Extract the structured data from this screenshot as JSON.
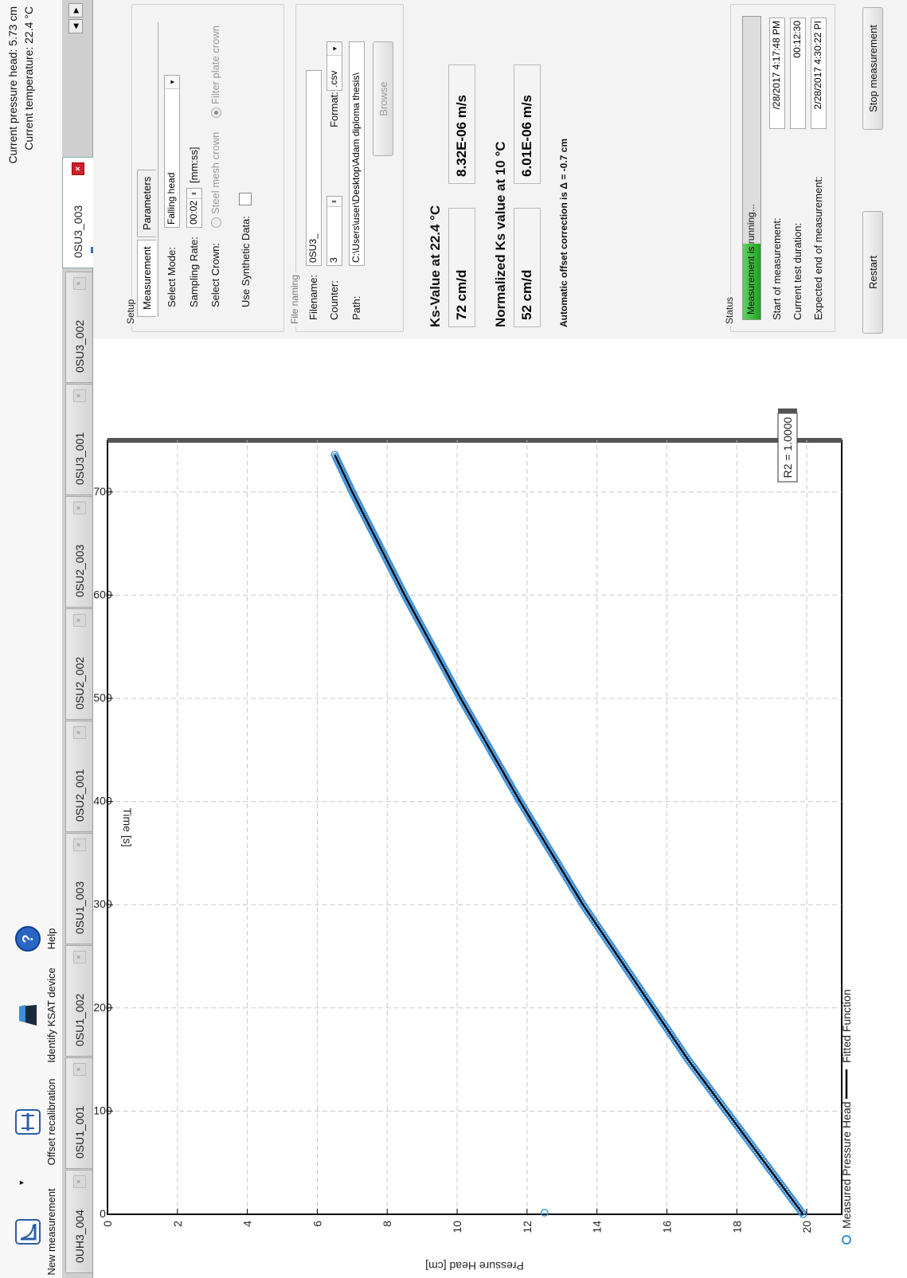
{
  "toolbar": {
    "new_measurement": "New measurement",
    "offset_recalibration": "Offset recalibration",
    "identify_device": "Identify KSAT device",
    "help": "Help",
    "icons": [
      "new-measurement-icon",
      "offset-recalibration-icon",
      "ksat-device-icon",
      "help-icon"
    ]
  },
  "status": {
    "pressure_head": "Current pressure head: 5.73 cm",
    "temperature": "Current temperature:  22.4 °C"
  },
  "tabs": [
    "0UH3_004",
    "0SU1_001",
    "0SU1_002",
    "0SU1_003",
    "0SU2_001",
    "0SU2_002",
    "0SU2_003",
    "0SU3_001",
    "0SU3_002",
    "0SU3_003"
  ],
  "active_tab": "0SU3_003",
  "chart_data": {
    "type": "scatter",
    "xlabel": "Time [s]",
    "ylabel": "Pressure Head [cm]",
    "xlim": [
      0,
      750
    ],
    "ylim": [
      0,
      21
    ],
    "xticks": [
      0,
      100,
      200,
      300,
      400,
      500,
      600,
      700
    ],
    "yticks": [
      0,
      2,
      4,
      6,
      8,
      10,
      12,
      14,
      16,
      18,
      20
    ],
    "grid": true,
    "legend": [
      "Measured Pressure Head",
      "Fitted Function"
    ],
    "legend_position": "top-left",
    "annotation": "R2 = 1.0000",
    "series": [
      {
        "name": "Measured Pressure Head",
        "style": "marker",
        "color": "#3a8fd6",
        "x": [
          0,
          50,
          100,
          150,
          200,
          250,
          300,
          350,
          400,
          450,
          500,
          550,
          600,
          650,
          700,
          736
        ],
        "y": [
          19.9,
          18.8,
          17.7,
          16.6,
          15.6,
          14.6,
          13.6,
          12.7,
          11.8,
          10.95,
          10.1,
          9.3,
          8.5,
          7.75,
          7.0,
          6.5
        ]
      },
      {
        "name": "Fitted Function",
        "style": "line",
        "color": "#000000",
        "x": [
          0,
          50,
          100,
          150,
          200,
          250,
          300,
          350,
          400,
          450,
          500,
          550,
          600,
          650,
          700,
          736
        ],
        "y": [
          19.9,
          18.8,
          17.7,
          16.6,
          15.6,
          14.6,
          13.6,
          12.7,
          11.8,
          10.95,
          10.1,
          9.3,
          8.5,
          7.75,
          7.0,
          6.5
        ]
      }
    ],
    "extra_point": {
      "x": 0,
      "y": 12.5
    }
  },
  "setup": {
    "title": "Setup",
    "tab_measurement": "Measurement",
    "tab_parameters": "Parameters",
    "select_mode_label": "Select Mode:",
    "select_mode_value": "Falling head",
    "sampling_rate_label": "Sampling Rate:",
    "sampling_rate_value": "00:02",
    "sampling_rate_unit": "[mm:ss]",
    "select_crown_label": "Select Crown:",
    "crown_option1": "Steel mesh crown",
    "crown_option2": "Filter plate crown",
    "synthetic_label": "Use Synthetic Data:"
  },
  "file_naming": {
    "title": "File naming",
    "filename_label": "Filename:",
    "filename_value": "0SU3_",
    "counter_label": "Counter:",
    "counter_value": "3",
    "format_label": "Format:",
    "format_value": ".csv",
    "path_label": "Path:",
    "path_value": "C:\\Users\\user\\Desktop\\Adam diploma thesis\\",
    "browse": "Browse"
  },
  "ks": {
    "title": "Ks-Value at 22.4 °C",
    "cmd": "72 cm/d",
    "ms": "8.32E-06 m/s",
    "norm_title": "Normalized Ks value at 10 °C",
    "norm_cmd": "52 cm/d",
    "norm_ms": "6.01E-06 m/s",
    "offset_note": "Automatic offset correction is Δ = -0.7 cm"
  },
  "status_group": {
    "title": "Status",
    "progress_text": "Measurement is running...",
    "progress": 0.25,
    "start_label": "Start of measurement:",
    "start_value": "/28/2017 4:17:48 PM",
    "duration_label": "Current test duration:",
    "duration_value": "00:12:30",
    "end_label": "Expected end of measurement:",
    "end_value": "2/28/2017 4:30:22 PI"
  },
  "buttons": {
    "restart": "Restart",
    "stop": "Stop measurement"
  }
}
